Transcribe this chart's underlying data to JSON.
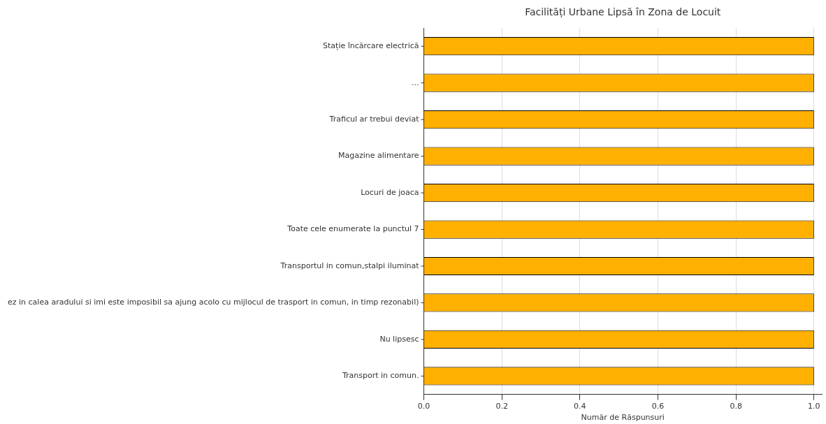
{
  "chart_data": {
    "type": "bar",
    "orientation": "horizontal",
    "title": "Facilități Urbane Lipsă în Zona de Locuit",
    "xlabel": "Număr de Răspunsuri",
    "categories": [
      "Stație încărcare electrică",
      "...",
      "Traficul ar trebui deviat",
      "Magazine alimentare",
      "Locuri de joaca",
      "Toate cele enumerate la punctul 7",
      "Transportul in comun,stalpi iluminat",
      "ez in calea aradului si imi este imposibil sa ajung acolo cu mijlocul de trasport in comun, in timp rezonabil)",
      "Nu lipsesc",
      "Transport in comun."
    ],
    "values": [
      1,
      1,
      1,
      1,
      1,
      1,
      1,
      1,
      1,
      1
    ],
    "color": "#ffb000",
    "xlim": [
      0,
      1.02
    ],
    "xticks": [
      {
        "value": 0,
        "label": "0.0"
      },
      {
        "value": 0.2,
        "label": "0.2"
      },
      {
        "value": 0.4,
        "label": "0.4"
      },
      {
        "value": 0.6,
        "label": "0.6"
      },
      {
        "value": 0.8,
        "label": "0.8"
      },
      {
        "value": 1,
        "label": "1.0"
      }
    ],
    "grid": "x",
    "legend": false
  }
}
